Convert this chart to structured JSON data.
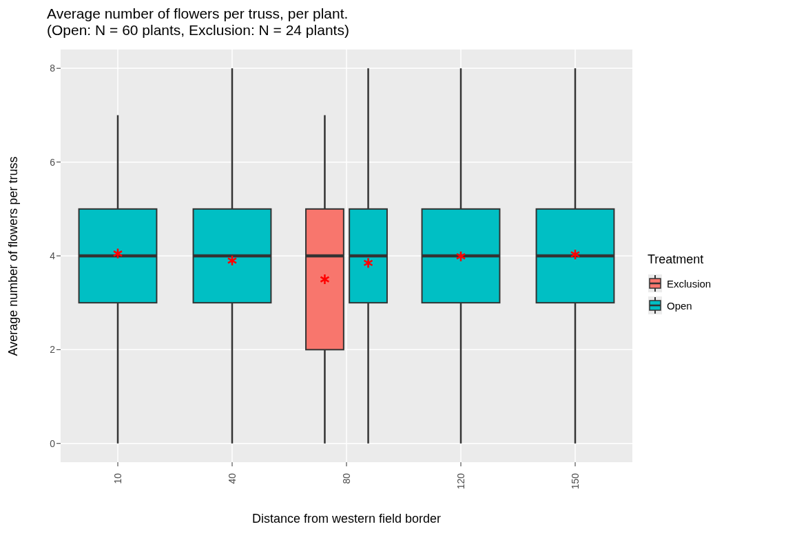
{
  "chart_data": {
    "type": "box",
    "title": "Average number of flowers per truss, per plant.\n(Open: N = 60 plants, Exclusion: N = 24 plants)",
    "xlabel": "Distance from western field border",
    "ylabel": "Average number of flowers per truss",
    "legend_title": "Treatment",
    "categories": [
      "10",
      "40",
      "80",
      "120",
      "150"
    ],
    "series": [
      {
        "name": "Exclusion",
        "color": "#f8766d",
        "boxes": [
          null,
          null,
          {
            "low": 0,
            "q1": 2,
            "median": 4,
            "q3": 5,
            "high": 7,
            "mean": 3.5
          },
          null,
          null
        ]
      },
      {
        "name": "Open",
        "color": "#00bfc4",
        "boxes": [
          {
            "low": 0,
            "q1": 3,
            "median": 4,
            "q3": 5,
            "high": 7,
            "mean": 4.05
          },
          {
            "low": 0,
            "q1": 3,
            "median": 4,
            "q3": 5,
            "high": 8,
            "mean": 3.9
          },
          {
            "low": 0,
            "q1": 3,
            "median": 4,
            "q3": 5,
            "high": 8,
            "mean": 3.85
          },
          {
            "low": 0,
            "q1": 3,
            "median": 4,
            "q3": 5,
            "high": 8,
            "mean": 3.99
          },
          {
            "low": 0,
            "q1": 3,
            "median": 4,
            "q3": 5,
            "high": 8,
            "mean": 4.03
          }
        ]
      }
    ],
    "ylim": [
      -0.4,
      8.4
    ],
    "yticks": [
      0,
      2,
      4,
      6,
      8
    ],
    "grid": true,
    "legend": "right",
    "marker": "star"
  }
}
